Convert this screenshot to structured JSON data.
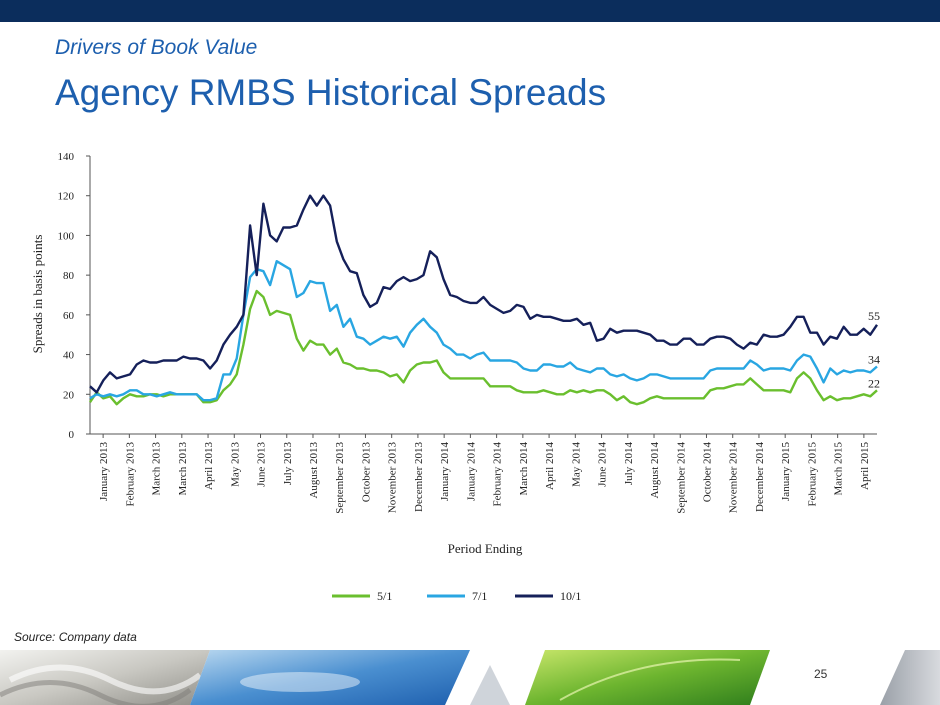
{
  "header": {
    "subtitle": "Drivers of Book Value",
    "title": "Agency RMBS Historical Spreads"
  },
  "footer": {
    "source": "Source: Company data",
    "page_number": "25"
  },
  "colors": {
    "topbar": "#0b2d5c",
    "title": "#1d5fae",
    "series_5_1": "#6abf2e",
    "series_7_1": "#29a6e2",
    "series_10_1": "#15205a"
  },
  "chart_data": {
    "type": "line",
    "xlabel": "Period Ending",
    "ylabel": "Spreads in basis points",
    "ylim": [
      0,
      140
    ],
    "yticks": [
      0,
      20,
      40,
      60,
      80,
      100,
      120,
      140
    ],
    "grid": false,
    "legend_position": "bottom-center",
    "x_tick_labels": [
      "January 2013",
      "February 2013",
      "March 2013",
      "March 2013",
      "April 2013",
      "May 2013",
      "June 2013",
      "July 2013",
      "August 2013",
      "September 2013",
      "October 2013",
      "November 2013",
      "December 2013",
      "January 2014",
      "January 2014",
      "February 2014",
      "March 2014",
      "April 2014",
      "May 2014",
      "June 2014",
      "July 2014",
      "August 2014",
      "September 2014",
      "October 2014",
      "November 2014",
      "December 2014",
      "January 2015",
      "February 2015",
      "March 2015",
      "April 2015"
    ],
    "end_labels": [
      "22",
      "34",
      "55"
    ],
    "series": [
      {
        "name": "5/1",
        "color": "#6abf2e",
        "values": [
          16,
          21,
          18,
          19,
          15,
          18,
          20,
          19,
          19,
          20,
          20,
          19,
          20,
          20,
          20,
          20,
          20,
          16,
          16,
          17,
          22,
          25,
          30,
          45,
          63,
          72,
          69,
          60,
          62,
          61,
          60,
          48,
          42,
          47,
          45,
          45,
          40,
          43,
          36,
          35,
          33,
          33,
          32,
          32,
          31,
          29,
          30,
          26,
          32,
          35,
          36,
          36,
          37,
          31,
          28,
          28,
          28,
          28,
          28,
          28,
          24,
          24,
          24,
          24,
          22,
          21,
          21,
          21,
          22,
          21,
          20,
          20,
          22,
          21,
          22,
          21,
          22,
          22,
          20,
          17,
          19,
          16,
          15,
          16,
          18,
          19,
          18,
          18,
          18,
          18,
          18,
          18,
          18,
          22,
          23,
          23,
          24,
          25,
          25,
          28,
          25,
          22,
          22,
          22,
          22,
          21,
          28,
          31,
          28,
          22,
          17,
          19,
          17,
          18,
          18,
          19,
          20,
          19,
          22
        ]
      },
      {
        "name": "7/1",
        "color": "#29a6e2",
        "values": [
          18,
          20,
          19,
          20,
          19,
          20,
          22,
          22,
          20,
          20,
          19,
          20,
          21,
          20,
          20,
          20,
          20,
          17,
          17,
          18,
          30,
          30,
          38,
          60,
          79,
          83,
          82,
          75,
          87,
          85,
          83,
          69,
          71,
          77,
          76,
          76,
          62,
          65,
          54,
          58,
          49,
          48,
          45,
          47,
          49,
          48,
          49,
          44,
          51,
          55,
          58,
          54,
          51,
          45,
          43,
          40,
          40,
          38,
          40,
          41,
          37,
          37,
          37,
          37,
          36,
          33,
          32,
          32,
          35,
          35,
          34,
          34,
          36,
          33,
          32,
          31,
          33,
          33,
          30,
          29,
          30,
          28,
          27,
          28,
          30,
          30,
          29,
          28,
          28,
          28,
          28,
          28,
          28,
          32,
          33,
          33,
          33,
          33,
          33,
          37,
          35,
          32,
          33,
          33,
          33,
          32,
          37,
          40,
          39,
          33,
          26,
          33,
          30,
          32,
          31,
          32,
          32,
          31,
          34
        ]
      },
      {
        "name": "10/1",
        "color": "#15205a",
        "values": [
          24,
          21,
          27,
          31,
          28,
          29,
          30,
          35,
          37,
          36,
          36,
          37,
          37,
          37,
          39,
          38,
          38,
          37,
          33,
          37,
          45,
          50,
          54,
          60,
          105,
          80,
          116,
          100,
          97,
          104,
          104,
          105,
          113,
          120,
          115,
          120,
          115,
          97,
          88,
          82,
          81,
          70,
          64,
          66,
          74,
          73,
          77,
          79,
          77,
          78,
          80,
          92,
          89,
          78,
          70,
          69,
          67,
          66,
          66,
          69,
          65,
          63,
          61,
          62,
          65,
          64,
          58,
          60,
          59,
          59,
          58,
          57,
          57,
          58,
          55,
          56,
          47,
          48,
          53,
          51,
          52,
          52,
          52,
          51,
          50,
          47,
          47,
          45,
          45,
          48,
          48,
          45,
          45,
          48,
          49,
          49,
          48,
          45,
          43,
          46,
          45,
          50,
          49,
          49,
          50,
          54,
          59,
          59,
          51,
          51,
          45,
          49,
          48,
          54,
          50,
          50,
          53,
          50,
          55
        ]
      }
    ]
  }
}
